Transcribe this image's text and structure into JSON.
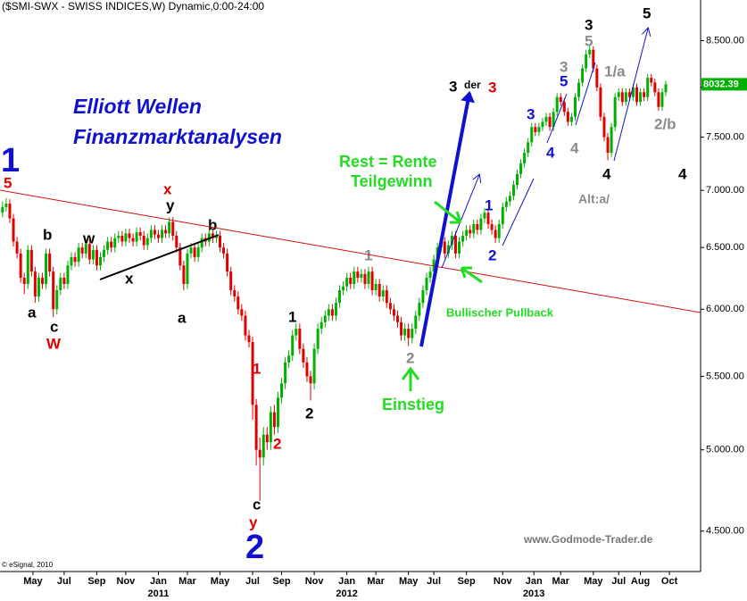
{
  "chart_data": {
    "type": "candlestick",
    "title": "($SMI-SWX - SWISS INDICES,W) Dynamic,0:00-24:00",
    "source": "© eSignal, 2010",
    "watermark": "www.Godmode-Trader.de",
    "log_scale": true,
    "up_color": "#00b000",
    "down_color": "#e00000",
    "ylim": [
      4270,
      8960
    ],
    "yticks": [
      {
        "value": 4500,
        "label": "4.500.00"
      },
      {
        "value": 5000,
        "label": "5.000.00"
      },
      {
        "value": 5500,
        "label": "5.500.00"
      },
      {
        "value": 6000,
        "label": "6.000.00"
      },
      {
        "value": 6500,
        "label": "6.500.00"
      },
      {
        "value": 7000,
        "label": "7.000.00"
      },
      {
        "value": 7500,
        "label": "7.500.00"
      },
      {
        "value": 8000,
        "label": "8.000.00"
      },
      {
        "value": 8500,
        "label": "8.500.00"
      }
    ],
    "xlim": [
      -0.7,
      192.6
    ],
    "xticks": [
      {
        "value": 8.4,
        "label": "May"
      },
      {
        "value": 17,
        "label": "Jul"
      },
      {
        "value": 26,
        "label": "Sep"
      },
      {
        "value": 34,
        "label": "Nov"
      },
      {
        "value": 43,
        "label": "Jan"
      },
      {
        "value": 51,
        "label": "Mar"
      },
      {
        "value": 60,
        "label": "May"
      },
      {
        "value": 69,
        "label": "Jul"
      },
      {
        "value": 77,
        "label": "Sep"
      },
      {
        "value": 86,
        "label": "Nov"
      },
      {
        "value": 95,
        "label": "Jan"
      },
      {
        "value": 103,
        "label": "Mar"
      },
      {
        "value": 112,
        "label": "May"
      },
      {
        "value": 119,
        "label": "Jul"
      },
      {
        "value": 128,
        "label": "Sep"
      },
      {
        "value": 138,
        "label": "Nov"
      },
      {
        "value": 146.6,
        "label": "Jan"
      },
      {
        "value": 154,
        "label": "Mar"
      },
      {
        "value": 163,
        "label": "May"
      },
      {
        "value": 170,
        "label": "Jul"
      },
      {
        "value": 176,
        "label": "Aug"
      },
      {
        "value": 184,
        "label": "Oct"
      }
    ],
    "year_ticks": [
      {
        "value": 43,
        "label": "2011"
      },
      {
        "value": 95,
        "label": "2012"
      },
      {
        "value": 146.6,
        "label": "2013"
      }
    ],
    "open": [
      6800,
      6850,
      6880,
      6750,
      6550,
      6450,
      6250,
      6200,
      6480,
      6300,
      6100,
      6250,
      6200,
      6450,
      6300,
      6000,
      6150,
      6250,
      6200,
      6350,
      6420,
      6380,
      6500,
      6450,
      6530,
      6400,
      6480,
      6350,
      6420,
      6480,
      6550,
      6500,
      6580,
      6600,
      6550,
      6620,
      6580,
      6550,
      6630,
      6600,
      6520,
      6580,
      6650,
      6610,
      6580,
      6650,
      6620,
      6720,
      6600,
      6500,
      6350,
      6200,
      6450,
      6500,
      6420,
      6500,
      6580,
      6550,
      6620,
      6580,
      6600,
      6500,
      6450,
      6300,
      6150,
      6100,
      6000,
      5950,
      5800,
      5750,
      5300,
      5000,
      4950,
      5100,
      5050,
      5250,
      5150,
      5350,
      5450,
      5600,
      5650,
      5800,
      5850,
      5700,
      5600,
      5500,
      5450,
      5700,
      5850,
      5900,
      5950,
      6000,
      5950,
      6050,
      6150,
      6180,
      6250,
      6200,
      6300,
      6250,
      6280,
      6200,
      6300,
      6150,
      6200,
      6100,
      6150,
      6050,
      6000,
      5950,
      5900,
      5800,
      5850,
      5780,
      5850,
      5950,
      6050,
      6150,
      6250,
      6300,
      6400,
      6500,
      6550,
      6450,
      6520,
      6600,
      6450,
      6550,
      6600,
      6650,
      6620,
      6700,
      6650,
      6750,
      6800,
      6700,
      6650,
      6580,
      6700,
      6850,
      6900,
      6950,
      7050,
      7150,
      7250,
      7350,
      7450,
      7600,
      7550,
      7600,
      7650,
      7700,
      7600,
      7750,
      7900,
      7850,
      7750,
      7650,
      7700,
      7900,
      8050,
      8200,
      8350,
      8400,
      8200,
      8000,
      7700,
      7500,
      7350,
      7600,
      7900,
      7950,
      7850,
      7950,
      7900,
      8000,
      7850,
      7950,
      7900,
      8100,
      8050,
      7950,
      7800,
      7950
    ],
    "high": [
      6900,
      6930,
      6920,
      6790,
      6590,
      6490,
      6290,
      6520,
      6520,
      6340,
      6290,
      6290,
      6490,
      6490,
      6340,
      6190,
      6290,
      6290,
      6390,
      6460,
      6460,
      6540,
      6540,
      6570,
      6570,
      6520,
      6520,
      6460,
      6520,
      6590,
      6590,
      6620,
      6640,
      6640,
      6660,
      6660,
      6620,
      6670,
      6670,
      6640,
      6620,
      6690,
      6690,
      6650,
      6690,
      6690,
      6760,
      6760,
      6640,
      6540,
      6390,
      6490,
      6540,
      6540,
      6540,
      6620,
      6620,
      6660,
      6660,
      6640,
      6640,
      6540,
      6490,
      6340,
      6190,
      6140,
      6040,
      5990,
      5840,
      5790,
      5340,
      5080,
      5150,
      5150,
      5290,
      5300,
      5390,
      5490,
      5640,
      5690,
      5840,
      5890,
      5890,
      5740,
      5640,
      5540,
      5740,
      5890,
      5940,
      5990,
      6040,
      6040,
      6090,
      6190,
      6220,
      6290,
      6290,
      6340,
      6340,
      6320,
      6320,
      6340,
      6340,
      6240,
      6240,
      6190,
      6190,
      6090,
      6040,
      5990,
      5940,
      5890,
      5890,
      5890,
      5990,
      6090,
      6190,
      6290,
      6340,
      6440,
      6540,
      6590,
      6590,
      6560,
      6640,
      6640,
      6590,
      6640,
      6690,
      6690,
      6740,
      6740,
      6790,
      6840,
      6840,
      6740,
      6690,
      6740,
      6890,
      6940,
      6990,
      7090,
      7190,
      7290,
      7390,
      7490,
      7640,
      7640,
      7640,
      7690,
      7740,
      7740,
      7790,
      7940,
      7940,
      7890,
      7790,
      7740,
      7940,
      8090,
      8240,
      8400,
      8460,
      8440,
      8240,
      8040,
      7740,
      7540,
      7640,
      7940,
      7990,
      7990,
      7990,
      7990,
      8040,
      8040,
      7990,
      7990,
      8140,
      8140,
      8090,
      7990,
      7990,
      8070
    ],
    "low": [
      6760,
      6810,
      6710,
      6510,
      6410,
      6210,
      6120,
      6160,
      6260,
      6050,
      6060,
      6160,
      6160,
      6260,
      5940,
      5960,
      6110,
      6160,
      6160,
      6310,
      6340,
      6340,
      6410,
      6410,
      6360,
      6360,
      6310,
      6310,
      6380,
      6440,
      6460,
      6460,
      6540,
      6510,
      6510,
      6540,
      6510,
      6510,
      6560,
      6480,
      6480,
      6540,
      6570,
      6540,
      6540,
      6580,
      6580,
      6560,
      6460,
      6310,
      6150,
      6160,
      6410,
      6380,
      6380,
      6460,
      6510,
      6510,
      6540,
      6540,
      6460,
      6410,
      6260,
      6110,
      6060,
      5960,
      5910,
      5760,
      5710,
      5200,
      4900,
      4680,
      4900,
      5000,
      5000,
      5100,
      5110,
      5310,
      5410,
      5560,
      5610,
      5760,
      5660,
      5560,
      5460,
      5330,
      5410,
      5660,
      5810,
      5860,
      5910,
      5910,
      5910,
      6010,
      6110,
      6140,
      6160,
      6160,
      6210,
      6210,
      6160,
      6160,
      6110,
      6110,
      6060,
      6060,
      6010,
      5960,
      5910,
      5860,
      5760,
      5760,
      5720,
      5740,
      5810,
      5910,
      6010,
      6110,
      6210,
      6260,
      6360,
      6460,
      6410,
      6410,
      6480,
      6410,
      6410,
      6510,
      6560,
      6580,
      6580,
      6610,
      6610,
      6710,
      6660,
      6610,
      6540,
      6540,
      6660,
      6810,
      6860,
      6910,
      7010,
      7110,
      7210,
      7310,
      7410,
      7510,
      7510,
      7560,
      7610,
      7560,
      7560,
      7710,
      7810,
      7710,
      7610,
      7610,
      7660,
      7860,
      8010,
      8160,
      8310,
      8160,
      7960,
      7660,
      7460,
      7280,
      7310,
      7560,
      7860,
      7810,
      7810,
      7860,
      7860,
      7810,
      7810,
      7860,
      7860,
      8010,
      7910,
      7760,
      7760,
      7910
    ],
    "close": [
      6850,
      6880,
      6750,
      6550,
      6450,
      6250,
      6200,
      6480,
      6300,
      6100,
      6250,
      6200,
      6450,
      6300,
      6000,
      6150,
      6250,
      6200,
      6350,
      6420,
      6380,
      6500,
      6450,
      6530,
      6400,
      6480,
      6350,
      6420,
      6480,
      6550,
      6500,
      6580,
      6600,
      6550,
      6620,
      6580,
      6550,
      6630,
      6600,
      6520,
      6580,
      6650,
      6610,
      6580,
      6650,
      6620,
      6720,
      6600,
      6500,
      6350,
      6200,
      6450,
      6500,
      6420,
      6500,
      6580,
      6550,
      6620,
      6580,
      6600,
      6500,
      6450,
      6300,
      6150,
      6100,
      6000,
      5950,
      5800,
      5750,
      5300,
      5000,
      4950,
      5100,
      5050,
      5250,
      5150,
      5350,
      5450,
      5600,
      5650,
      5800,
      5850,
      5700,
      5600,
      5500,
      5450,
      5700,
      5850,
      5900,
      5950,
      6000,
      5950,
      6050,
      6150,
      6180,
      6250,
      6200,
      6300,
      6250,
      6280,
      6200,
      6300,
      6150,
      6200,
      6100,
      6150,
      6050,
      6000,
      5950,
      5900,
      5800,
      5850,
      5780,
      5850,
      5950,
      6050,
      6150,
      6250,
      6300,
      6400,
      6500,
      6550,
      6450,
      6520,
      6600,
      6450,
      6550,
      6600,
      6650,
      6620,
      6700,
      6650,
      6750,
      6800,
      6700,
      6650,
      6580,
      6700,
      6850,
      6900,
      6950,
      7050,
      7150,
      7250,
      7350,
      7450,
      7600,
      7550,
      7600,
      7650,
      7700,
      7600,
      7750,
      7900,
      7850,
      7750,
      7650,
      7700,
      7900,
      8050,
      8200,
      8350,
      8400,
      8200,
      8000,
      7700,
      7500,
      7350,
      7600,
      7900,
      7950,
      7850,
      7950,
      7900,
      8000,
      7850,
      7950,
      7900,
      8100,
      8050,
      7950,
      7800,
      7950,
      8032.39
    ],
    "annotations": [
      "Elliott Wellen",
      "Finanzmarktanalysen",
      "1",
      "5",
      "a",
      "b",
      "c",
      "W",
      "w",
      "x",
      "y",
      "x",
      "b",
      "a",
      "1",
      "2",
      "c",
      "y",
      "2",
      "1",
      "2",
      "1",
      "2",
      "Einstieg",
      "Rest = Rente",
      "Teilgewinn",
      "Bullischer Pullback",
      "1",
      "2",
      "3",
      "der",
      "3",
      "3",
      "4",
      "5",
      "3",
      "4",
      "3",
      "5",
      "1/a",
      "4",
      "Alt:a/",
      "5",
      "2/b",
      "4"
    ]
  }
}
